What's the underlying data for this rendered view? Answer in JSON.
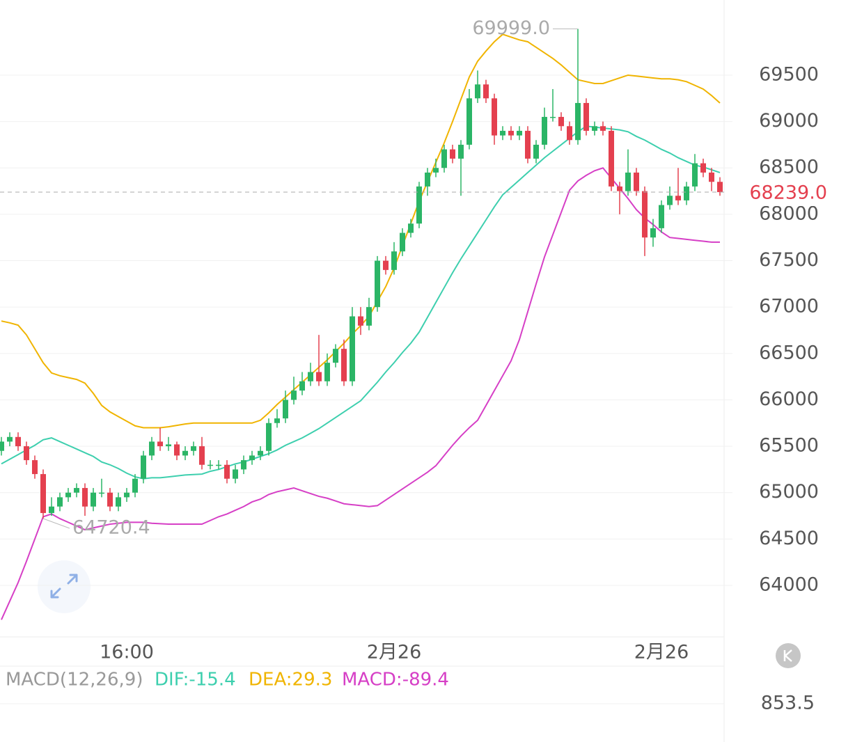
{
  "chart_data": {
    "type": "candlestick",
    "categories": [
      null,
      null,
      null,
      null,
      null,
      null,
      null,
      null,
      null,
      null,
      null,
      null,
      null,
      null,
      null,
      "16:00",
      null,
      null,
      null,
      null,
      null,
      null,
      null,
      null,
      null,
      null,
      null,
      null,
      null,
      null,
      null,
      null,
      null,
      null,
      null,
      null,
      null,
      null,
      null,
      null,
      null,
      null,
      null,
      null,
      null,
      null,
      null,
      "2月26",
      null,
      null,
      null,
      null,
      null,
      null,
      null,
      null,
      null,
      null,
      null,
      null,
      null,
      null,
      null,
      null,
      null,
      null,
      null,
      null,
      null,
      null,
      null,
      null,
      null,
      null,
      null,
      null,
      null,
      null,
      null,
      "2月26",
      null,
      null,
      null,
      null,
      null,
      null,
      null
    ],
    "open": [
      65450,
      65550,
      65600,
      65500,
      65350,
      65200,
      64780,
      64850,
      64950,
      65000,
      65050,
      64850,
      65000,
      65000,
      64850,
      64950,
      65000,
      65150,
      65400,
      65550,
      65500,
      65520,
      65400,
      65450,
      65500,
      65300,
      65300,
      65300,
      65150,
      65250,
      65350,
      65400,
      65450,
      65750,
      65800,
      66000,
      66100,
      66200,
      66300,
      66200,
      66400,
      66550,
      66200,
      66900,
      66800,
      67000,
      67500,
      67400,
      67600,
      67800,
      67900,
      68300,
      68450,
      68500,
      68700,
      68600,
      68750,
      69250,
      69400,
      69250,
      68850,
      68900,
      68850,
      68900,
      68600,
      68750,
      69050,
      69050,
      68950,
      68800,
      69200,
      68900,
      68950,
      68900,
      68300,
      68250,
      68450,
      68250,
      67750,
      67850,
      68100,
      68200,
      68150,
      68300,
      68550,
      68450,
      68350
    ],
    "high": [
      65600,
      65650,
      65650,
      65550,
      65400,
      65250,
      64950,
      65000,
      65050,
      65100,
      65100,
      65050,
      65150,
      65050,
      65000,
      65050,
      65200,
      65450,
      65600,
      65700,
      65600,
      65550,
      65500,
      65550,
      65600,
      65350,
      65350,
      65350,
      65300,
      65400,
      65450,
      65500,
      65800,
      65900,
      66100,
      66250,
      66300,
      66400,
      66700,
      66500,
      66600,
      66650,
      67000,
      67000,
      67100,
      67550,
      67550,
      67700,
      67850,
      67950,
      68350,
      68500,
      68600,
      68750,
      68750,
      68800,
      69350,
      69550,
      69450,
      69300,
      68950,
      68950,
      68950,
      68950,
      68800,
      69150,
      69350,
      69100,
      69000,
      69999,
      69250,
      69000,
      69000,
      68950,
      68350,
      68700,
      68500,
      68300,
      67950,
      68150,
      68300,
      68500,
      68350,
      68650,
      68600,
      68500,
      68400
    ],
    "low": [
      65400,
      65500,
      65450,
      65300,
      65150,
      64720.4,
      64750,
      64800,
      64900,
      64950,
      64750,
      64800,
      64950,
      64800,
      64800,
      64900,
      64950,
      65100,
      65350,
      65450,
      65450,
      65350,
      65350,
      65400,
      65250,
      65250,
      65250,
      65100,
      65100,
      65200,
      65300,
      65350,
      65400,
      65700,
      65750,
      65950,
      66050,
      66150,
      66150,
      66150,
      66350,
      66150,
      66150,
      66700,
      66750,
      66950,
      67350,
      67350,
      67550,
      67750,
      67850,
      68200,
      68400,
      68450,
      68550,
      68200,
      68700,
      69200,
      69200,
      68750,
      68800,
      68800,
      68800,
      68550,
      68550,
      68700,
      69000,
      68900,
      68750,
      68750,
      68850,
      68850,
      68850,
      68250,
      68000,
      68200,
      68200,
      67550,
      67650,
      67800,
      68050,
      68100,
      68100,
      68250,
      68400,
      68250,
      68200
    ],
    "close": [
      65550,
      65600,
      65500,
      65350,
      65200,
      64780,
      64850,
      64950,
      65000,
      65050,
      64850,
      65000,
      65000,
      64850,
      64950,
      65000,
      65150,
      65400,
      65550,
      65500,
      65520,
      65400,
      65450,
      65500,
      65300,
      65300,
      65300,
      65150,
      65250,
      65350,
      65400,
      65450,
      65750,
      65800,
      66000,
      66100,
      66200,
      66300,
      66200,
      66400,
      66550,
      66200,
      66900,
      66800,
      67000,
      67500,
      67400,
      67600,
      67800,
      67900,
      68300,
      68450,
      68500,
      68700,
      68600,
      68750,
      69250,
      69400,
      69250,
      68850,
      68900,
      68850,
      68900,
      68600,
      68750,
      69050,
      69050,
      68950,
      68800,
      69200,
      68900,
      68950,
      68900,
      68300,
      68250,
      68450,
      68250,
      67750,
      67850,
      68100,
      68200,
      68150,
      68300,
      68550,
      68450,
      68350,
      68239
    ],
    "up_color": "#2bb566",
    "down_color": "#e4404f",
    "series": [
      {
        "color": "#f0b400",
        "values": [
          66850,
          66830,
          66805,
          66700,
          66550,
          66400,
          66290,
          66260,
          66240,
          66220,
          66180,
          66070,
          65940,
          65870,
          65820,
          65770,
          65720,
          65700,
          65700,
          65700,
          65710,
          65725,
          65740,
          65750,
          65750,
          65750,
          65750,
          65750,
          65750,
          65750,
          65750,
          65780,
          65860,
          65950,
          66030,
          66110,
          66190,
          66270,
          66350,
          66430,
          66520,
          66610,
          66710,
          66800,
          66900,
          67060,
          67220,
          67420,
          67660,
          67900,
          68140,
          68350,
          68560,
          68770,
          69000,
          69240,
          69480,
          69650,
          69760,
          69860,
          69940,
          69910,
          69880,
          69860,
          69800,
          69740,
          69680,
          69610,
          69530,
          69450,
          69430,
          69410,
          69410,
          69440,
          69470,
          69500,
          69490,
          69480,
          69470,
          69460,
          69460,
          69450,
          69430,
          69390,
          69350,
          69280,
          69200
        ]
      },
      {
        "color": "#3dcfae",
        "values": [
          65310,
          65360,
          65410,
          65460,
          65510,
          65570,
          65590,
          65550,
          65510,
          65470,
          65430,
          65390,
          65330,
          65300,
          65260,
          65210,
          65170,
          65150,
          65160,
          65160,
          65170,
          65180,
          65190,
          65195,
          65200,
          65230,
          65250,
          65280,
          65310,
          65330,
          65360,
          65390,
          65420,
          65460,
          65510,
          65550,
          65590,
          65640,
          65690,
          65750,
          65810,
          65870,
          65930,
          65990,
          66090,
          66190,
          66300,
          66400,
          66510,
          66610,
          66730,
          66890,
          67050,
          67210,
          67370,
          67520,
          67660,
          67800,
          67940,
          68080,
          68210,
          68290,
          68370,
          68450,
          68530,
          68610,
          68680,
          68750,
          68820,
          68890,
          68950,
          68940,
          68930,
          68920,
          68910,
          68890,
          68840,
          68800,
          68750,
          68700,
          68660,
          68610,
          68570,
          68530,
          68510,
          68480,
          68450
        ]
      },
      {
        "color": "#d63fc6",
        "values": [
          63630,
          63830,
          64030,
          64260,
          64500,
          64740,
          64770,
          64720,
          64680,
          64640,
          64600,
          64620,
          64640,
          64660,
          64670,
          64680,
          64680,
          64680,
          64670,
          64665,
          64660,
          64660,
          64660,
          64660,
          64660,
          64700,
          64740,
          64770,
          64810,
          64850,
          64900,
          64930,
          64980,
          65010,
          65030,
          65050,
          65020,
          64990,
          64960,
          64940,
          64910,
          64880,
          64870,
          64860,
          64850,
          64860,
          64920,
          64980,
          65040,
          65100,
          65160,
          65220,
          65290,
          65400,
          65510,
          65610,
          65700,
          65780,
          65940,
          66100,
          66260,
          66420,
          66650,
          66950,
          67250,
          67540,
          67780,
          68020,
          68260,
          68360,
          68420,
          68470,
          68500,
          68390,
          68280,
          68170,
          68050,
          67960,
          67890,
          67810,
          67750,
          67740,
          67730,
          67720,
          67710,
          67700,
          67700
        ]
      }
    ],
    "ylim": [
      63445,
      70310
    ],
    "yticks": [
      64000,
      64500,
      65000,
      65500,
      66000,
      66500,
      67000,
      67500,
      68000,
      68500,
      69000,
      69500
    ],
    "grid": true,
    "last_price": {
      "value": 68239,
      "label": "68239.0"
    },
    "annotations": [
      {
        "value": 69999,
        "label": "69999.0"
      },
      {
        "value": 64720.4,
        "label": "64720.4"
      }
    ],
    "indicator": {
      "title": "MACD(12,26,9)",
      "dif": "DIF:-15.4",
      "dea": "DEA:29.3",
      "macd": "MACD:-89.4",
      "yticks": [
        853.5
      ]
    }
  }
}
